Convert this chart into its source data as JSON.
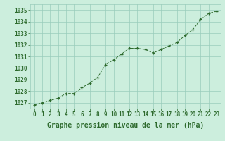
{
  "x": [
    0,
    1,
    2,
    3,
    4,
    5,
    6,
    7,
    8,
    9,
    10,
    11,
    12,
    13,
    14,
    15,
    16,
    17,
    18,
    19,
    20,
    21,
    22,
    23
  ],
  "y": [
    1026.8,
    1027.0,
    1027.2,
    1027.4,
    1027.8,
    1027.8,
    1028.3,
    1028.7,
    1029.2,
    1030.3,
    1030.7,
    1031.2,
    1031.7,
    1031.7,
    1031.6,
    1031.3,
    1031.6,
    1031.9,
    1032.2,
    1032.8,
    1033.3,
    1034.2,
    1034.7,
    1034.9
  ],
  "ylim": [
    1026.5,
    1035.5
  ],
  "yticks": [
    1027,
    1028,
    1029,
    1030,
    1031,
    1032,
    1033,
    1034,
    1035
  ],
  "xticks": [
    0,
    1,
    2,
    3,
    4,
    5,
    6,
    7,
    8,
    9,
    10,
    11,
    12,
    13,
    14,
    15,
    16,
    17,
    18,
    19,
    20,
    21,
    22,
    23
  ],
  "xlabel": "Graphe pression niveau de la mer (hPa)",
  "line_color": "#2d6a2d",
  "marker_color": "#2d6a2d",
  "bg_color": "#cceedd",
  "grid_color": "#99ccbb",
  "tick_color": "#2d6a2d",
  "label_color": "#2d6a2d",
  "tick_fontsize": 5.5,
  "xlabel_fontsize": 7
}
